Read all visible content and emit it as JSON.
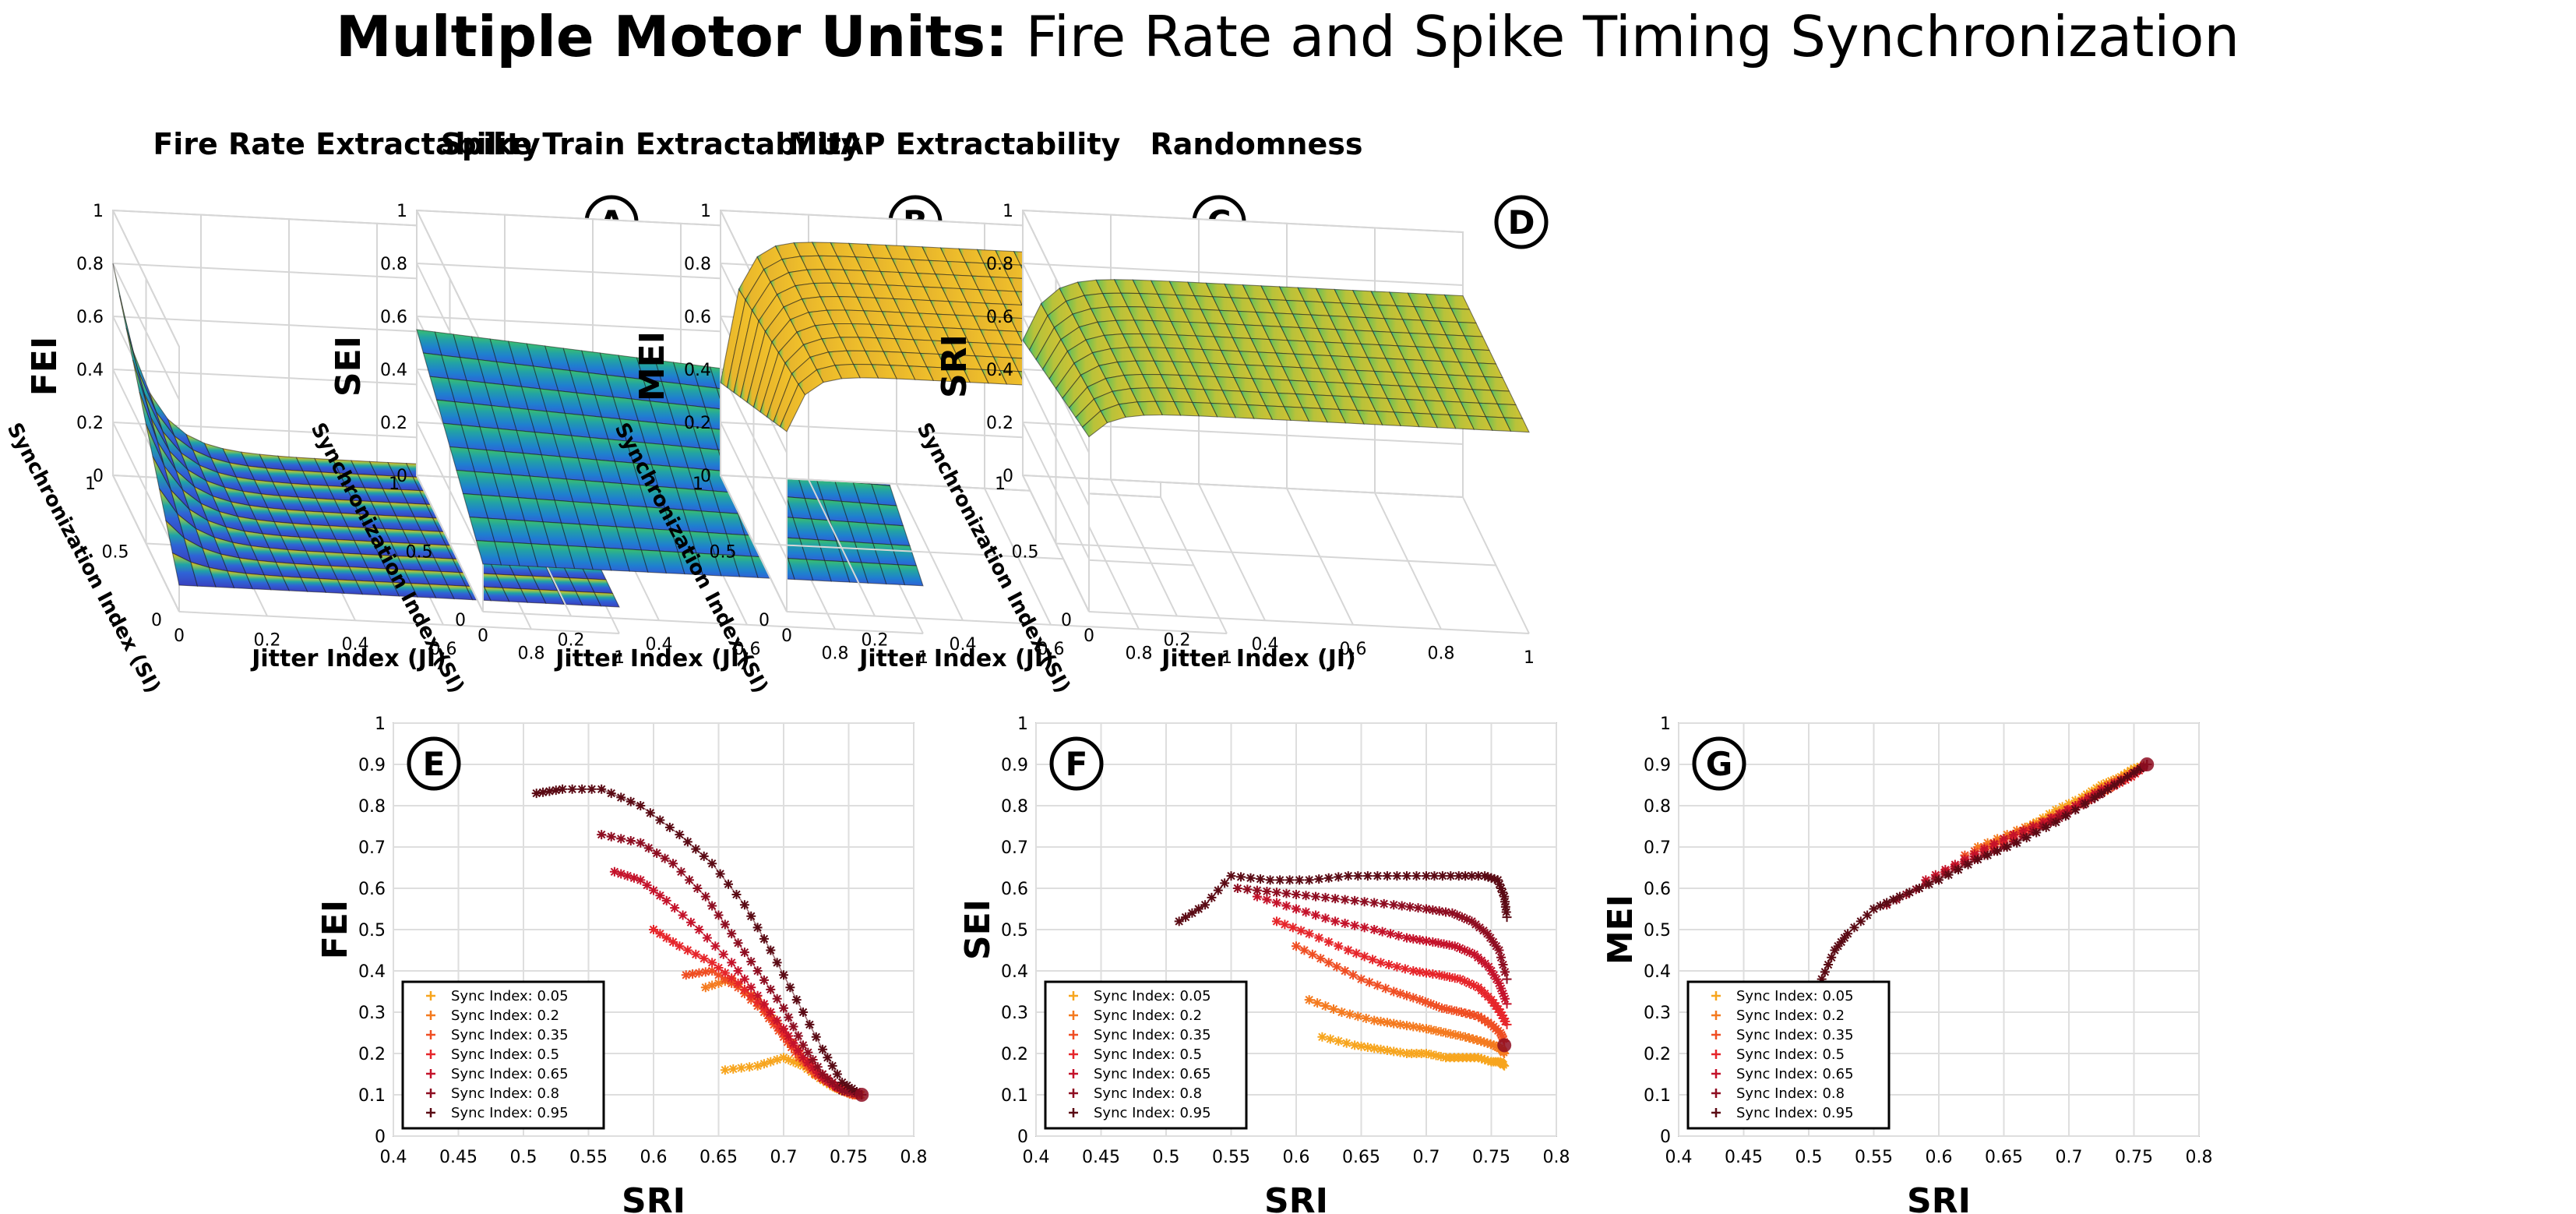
{
  "title": {
    "bold": "Multiple Motor Units:",
    "rest": " Fire Rate and Spike Timing Synchronization"
  },
  "surface_panels": [
    {
      "letter": "A",
      "title": "Fire Rate Extractability",
      "zlabel": "FEI",
      "xlabel": "Jitter Index (JI)",
      "ylabel": "Synchronization Index (SI)",
      "ztick_labels": [
        "0",
        "0.2",
        "0.4",
        "0.6",
        "0.8",
        "1"
      ],
      "xtick_labels": [
        "0",
        "0.2",
        "0.4",
        "0.6",
        "0.8",
        "1"
      ],
      "ytick_labels": [
        "0",
        "0.5",
        "1"
      ]
    },
    {
      "letter": "B",
      "title": "Spike Train Extractability",
      "zlabel": "SEI",
      "xlabel": "Jitter Index (JI)",
      "ylabel": "Synchronization Index (SI)",
      "ztick_labels": [
        "0",
        "0.2",
        "0.4",
        "0.6",
        "0.8",
        "1"
      ],
      "xtick_labels": [
        "0",
        "0.2",
        "0.4",
        "0.6",
        "0.8",
        "1"
      ],
      "ytick_labels": [
        "0",
        "0.5",
        "1"
      ]
    },
    {
      "letter": "C",
      "title": "MUAP Extractability",
      "zlabel": "MEI",
      "xlabel": "Jitter Index (JI)",
      "ylabel": "Synchronization Index (SI)",
      "ztick_labels": [
        "0",
        "0.2",
        "0.4",
        "0.6",
        "0.8",
        "1"
      ],
      "xtick_labels": [
        "0",
        "0.2",
        "0.4",
        "0.6",
        "0.8",
        "1"
      ],
      "ytick_labels": [
        "0",
        "0.5",
        "1"
      ]
    },
    {
      "letter": "D",
      "title": "Randomness",
      "zlabel": "SRI",
      "xlabel": "Jitter Index (JI)",
      "ylabel": "Synchronization Index (SI)",
      "ztick_labels": [
        "0",
        "0.2",
        "0.4",
        "0.6",
        "0.8",
        "1"
      ],
      "xtick_labels": [
        "0",
        "0.2",
        "0.4",
        "0.6",
        "0.8",
        "1"
      ],
      "ytick_labels": [
        "0",
        "0.5",
        "1"
      ]
    }
  ],
  "legend_labels": [
    "Sync Index: 0.05",
    "Sync Index: 0.2",
    "Sync Index: 0.35",
    "Sync Index: 0.5",
    "Sync Index: 0.65",
    "Sync Index: 0.8",
    "Sync Index: 0.95"
  ],
  "series_colors": [
    "#f7a51e",
    "#f47a1f",
    "#ef4e23",
    "#e6252a",
    "#c4122a",
    "#8e0d21",
    "#5a0a14"
  ],
  "chart_data": [
    {
      "type": "surface",
      "panel": "A",
      "title": "Fire Rate Extractability",
      "xlabel": "Jitter Index (JI)",
      "ylabel": "Synchronization Index (SI)",
      "zlabel": "FEI",
      "xlim": [
        0,
        1
      ],
      "ylim": [
        0,
        1
      ],
      "zlim": [
        0,
        1
      ],
      "description_values": {
        "z_at_JI0_SI1": 0.8,
        "z_plateau": 0.1
      }
    },
    {
      "type": "surface",
      "panel": "B",
      "title": "Spike Train Extractability",
      "xlabel": "Jitter Index (JI)",
      "ylabel": "Synchronization Index (SI)",
      "zlabel": "SEI",
      "xlim": [
        0,
        1
      ],
      "ylim": [
        0,
        1
      ],
      "zlim": [
        0,
        1
      ],
      "description_values": {
        "z_back_edge": 0.55,
        "z_front_edge": 0.18
      }
    },
    {
      "type": "surface",
      "panel": "C",
      "title": "MUAP Extractability",
      "xlabel": "Jitter Index (JI)",
      "ylabel": "Synchronization Index (SI)",
      "zlabel": "MEI",
      "xlim": [
        0,
        1
      ],
      "ylim": [
        0,
        1
      ],
      "zlim": [
        0,
        1
      ],
      "description_values": {
        "z_plateau": 0.9,
        "z_min_near_JI0": 0.35
      }
    },
    {
      "type": "surface",
      "panel": "D",
      "title": "Randomness",
      "xlabel": "Jitter Index (JI)",
      "ylabel": "Synchronization Index (SI)",
      "zlabel": "SRI",
      "xlim": [
        0,
        1
      ],
      "ylim": [
        0,
        1
      ],
      "zlim": [
        0,
        1
      ],
      "description_values": {
        "z_plateau": 0.76,
        "z_min_near_JI0": 0.51
      }
    },
    {
      "type": "scatter",
      "panel": "E",
      "xlabel": "SRI",
      "ylabel": "FEI",
      "xlim": [
        0.4,
        0.8
      ],
      "ylim": [
        0,
        1
      ],
      "xticks": [
        0.4,
        0.45,
        0.5,
        0.55,
        0.6,
        0.65,
        0.7,
        0.75,
        0.8
      ],
      "yticks": [
        0,
        0.1,
        0.2,
        0.3,
        0.4,
        0.5,
        0.6,
        0.7,
        0.8,
        0.9,
        1
      ],
      "series": [
        {
          "name": "Sync Index: 0.05",
          "x": [
            0.655,
            0.68,
            0.7,
            0.715,
            0.728,
            0.738,
            0.745,
            0.75,
            0.755,
            0.758,
            0.76
          ],
          "y": [
            0.16,
            0.17,
            0.19,
            0.17,
            0.14,
            0.12,
            0.11,
            0.105,
            0.1,
            0.1,
            0.1
          ]
        },
        {
          "name": "Sync Index: 0.2",
          "x": [
            0.64,
            0.66,
            0.68,
            0.695,
            0.71,
            0.72,
            0.73,
            0.74,
            0.748,
            0.755,
            0.76
          ],
          "y": [
            0.36,
            0.38,
            0.33,
            0.27,
            0.21,
            0.17,
            0.14,
            0.12,
            0.11,
            0.1,
            0.1
          ]
        },
        {
          "name": "Sync Index: 0.35",
          "x": [
            0.625,
            0.645,
            0.665,
            0.685,
            0.7,
            0.712,
            0.724,
            0.735,
            0.745,
            0.753,
            0.76
          ],
          "y": [
            0.39,
            0.4,
            0.36,
            0.3,
            0.24,
            0.19,
            0.15,
            0.13,
            0.11,
            0.1,
            0.1
          ]
        },
        {
          "name": "Sync Index: 0.5",
          "x": [
            0.6,
            0.62,
            0.645,
            0.665,
            0.685,
            0.7,
            0.715,
            0.728,
            0.74,
            0.75,
            0.76
          ],
          "y": [
            0.5,
            0.46,
            0.42,
            0.37,
            0.31,
            0.25,
            0.19,
            0.15,
            0.12,
            0.11,
            0.1
          ]
        },
        {
          "name": "Sync Index: 0.65",
          "x": [
            0.57,
            0.59,
            0.61,
            0.635,
            0.66,
            0.68,
            0.7,
            0.715,
            0.73,
            0.745,
            0.76
          ],
          "y": [
            0.64,
            0.62,
            0.57,
            0.5,
            0.42,
            0.34,
            0.26,
            0.19,
            0.14,
            0.11,
            0.1
          ]
        },
        {
          "name": "Sync Index: 0.8",
          "x": [
            0.56,
            0.59,
            0.615,
            0.64,
            0.66,
            0.68,
            0.7,
            0.715,
            0.73,
            0.745,
            0.76
          ],
          "y": [
            0.73,
            0.71,
            0.66,
            0.58,
            0.49,
            0.4,
            0.31,
            0.22,
            0.15,
            0.11,
            0.1
          ]
        },
        {
          "name": "Sync Index: 0.95",
          "x": [
            0.51,
            0.53,
            0.56,
            0.59,
            0.62,
            0.645,
            0.67,
            0.69,
            0.71,
            0.73,
            0.745,
            0.76
          ],
          "y": [
            0.83,
            0.84,
            0.84,
            0.8,
            0.73,
            0.66,
            0.56,
            0.45,
            0.33,
            0.21,
            0.13,
            0.1
          ]
        }
      ]
    },
    {
      "type": "scatter",
      "panel": "F",
      "xlabel": "SRI",
      "ylabel": "SEI",
      "xlim": [
        0.4,
        0.8
      ],
      "ylim": [
        0,
        1
      ],
      "xticks": [
        0.4,
        0.45,
        0.5,
        0.55,
        0.6,
        0.65,
        0.7,
        0.75,
        0.8
      ],
      "yticks": [
        0,
        0.1,
        0.2,
        0.3,
        0.4,
        0.5,
        0.6,
        0.7,
        0.8,
        0.9,
        1
      ],
      "series": [
        {
          "name": "Sync Index: 0.05",
          "x": [
            0.62,
            0.645,
            0.665,
            0.685,
            0.7,
            0.715,
            0.728,
            0.74,
            0.75,
            0.757,
            0.76
          ],
          "y": [
            0.24,
            0.22,
            0.21,
            0.2,
            0.2,
            0.19,
            0.19,
            0.19,
            0.18,
            0.18,
            0.17
          ]
        },
        {
          "name": "Sync Index: 0.2",
          "x": [
            0.61,
            0.635,
            0.66,
            0.68,
            0.7,
            0.715,
            0.73,
            0.742,
            0.752,
            0.758,
            0.76
          ],
          "y": [
            0.33,
            0.3,
            0.28,
            0.27,
            0.26,
            0.25,
            0.24,
            0.23,
            0.22,
            0.21,
            0.2
          ]
        },
        {
          "name": "Sync Index: 0.35",
          "x": [
            0.6,
            0.625,
            0.65,
            0.675,
            0.695,
            0.712,
            0.727,
            0.74,
            0.75,
            0.757,
            0.76
          ],
          "y": [
            0.46,
            0.42,
            0.38,
            0.35,
            0.33,
            0.31,
            0.3,
            0.29,
            0.27,
            0.25,
            0.23
          ]
        },
        {
          "name": "Sync Index: 0.5",
          "x": [
            0.585,
            0.61,
            0.64,
            0.665,
            0.69,
            0.71,
            0.726,
            0.74,
            0.75,
            0.757,
            0.762
          ],
          "y": [
            0.52,
            0.49,
            0.45,
            0.42,
            0.4,
            0.39,
            0.38,
            0.36,
            0.33,
            0.3,
            0.27
          ]
        },
        {
          "name": "Sync Index: 0.65",
          "x": [
            0.57,
            0.6,
            0.63,
            0.66,
            0.685,
            0.705,
            0.722,
            0.737,
            0.748,
            0.756,
            0.762
          ],
          "y": [
            0.58,
            0.55,
            0.52,
            0.5,
            0.48,
            0.47,
            0.46,
            0.44,
            0.41,
            0.37,
            0.32
          ]
        },
        {
          "name": "Sync Index: 0.8",
          "x": [
            0.555,
            0.585,
            0.615,
            0.645,
            0.675,
            0.7,
            0.72,
            0.735,
            0.747,
            0.756,
            0.762
          ],
          "y": [
            0.6,
            0.59,
            0.58,
            0.57,
            0.56,
            0.55,
            0.54,
            0.52,
            0.49,
            0.45,
            0.38
          ]
        },
        {
          "name": "Sync Index: 0.95",
          "x": [
            0.51,
            0.53,
            0.55,
            0.58,
            0.61,
            0.64,
            0.67,
            0.7,
            0.725,
            0.745,
            0.755,
            0.76,
            0.762
          ],
          "y": [
            0.52,
            0.56,
            0.63,
            0.62,
            0.62,
            0.63,
            0.63,
            0.63,
            0.63,
            0.63,
            0.62,
            0.58,
            0.53
          ]
        }
      ]
    },
    {
      "type": "scatter",
      "panel": "G",
      "xlabel": "SRI",
      "ylabel": "MEI",
      "xlim": [
        0.4,
        0.8
      ],
      "ylim": [
        0,
        1
      ],
      "xticks": [
        0.4,
        0.45,
        0.5,
        0.55,
        0.6,
        0.65,
        0.7,
        0.75,
        0.8
      ],
      "yticks": [
        0,
        0.1,
        0.2,
        0.3,
        0.4,
        0.5,
        0.6,
        0.7,
        0.8,
        0.9,
        1
      ],
      "series": [
        {
          "name": "Sync Index: 0.05",
          "x": [
            0.64,
            0.67,
            0.69,
            0.71,
            0.725,
            0.74,
            0.75,
            0.76
          ],
          "y": [
            0.7,
            0.75,
            0.79,
            0.82,
            0.85,
            0.87,
            0.89,
            0.9
          ]
        },
        {
          "name": "Sync Index: 0.2",
          "x": [
            0.63,
            0.66,
            0.685,
            0.705,
            0.72,
            0.735,
            0.75,
            0.76
          ],
          "y": [
            0.7,
            0.74,
            0.77,
            0.8,
            0.83,
            0.86,
            0.88,
            0.9
          ]
        },
        {
          "name": "Sync Index: 0.35",
          "x": [
            0.62,
            0.65,
            0.675,
            0.7,
            0.72,
            0.735,
            0.75,
            0.76
          ],
          "y": [
            0.68,
            0.72,
            0.75,
            0.79,
            0.82,
            0.85,
            0.88,
            0.9
          ]
        },
        {
          "name": "Sync Index: 0.5",
          "x": [
            0.605,
            0.635,
            0.665,
            0.69,
            0.71,
            0.73,
            0.748,
            0.76
          ],
          "y": [
            0.64,
            0.69,
            0.73,
            0.77,
            0.81,
            0.84,
            0.87,
            0.9
          ]
        },
        {
          "name": "Sync Index: 0.65",
          "x": [
            0.59,
            0.62,
            0.65,
            0.68,
            0.705,
            0.725,
            0.745,
            0.76
          ],
          "y": [
            0.62,
            0.67,
            0.72,
            0.76,
            0.8,
            0.84,
            0.87,
            0.9
          ]
        },
        {
          "name": "Sync Index: 0.8",
          "x": [
            0.56,
            0.59,
            0.62,
            0.65,
            0.68,
            0.705,
            0.73,
            0.75,
            0.76
          ],
          "y": [
            0.56,
            0.61,
            0.66,
            0.7,
            0.75,
            0.79,
            0.84,
            0.88,
            0.9
          ]
        },
        {
          "name": "Sync Index: 0.95",
          "x": [
            0.51,
            0.52,
            0.53,
            0.55,
            0.57,
            0.6,
            0.63,
            0.66,
            0.69,
            0.72,
            0.74,
            0.76
          ],
          "y": [
            0.38,
            0.45,
            0.49,
            0.55,
            0.58,
            0.62,
            0.67,
            0.71,
            0.76,
            0.82,
            0.86,
            0.9
          ]
        }
      ]
    }
  ]
}
